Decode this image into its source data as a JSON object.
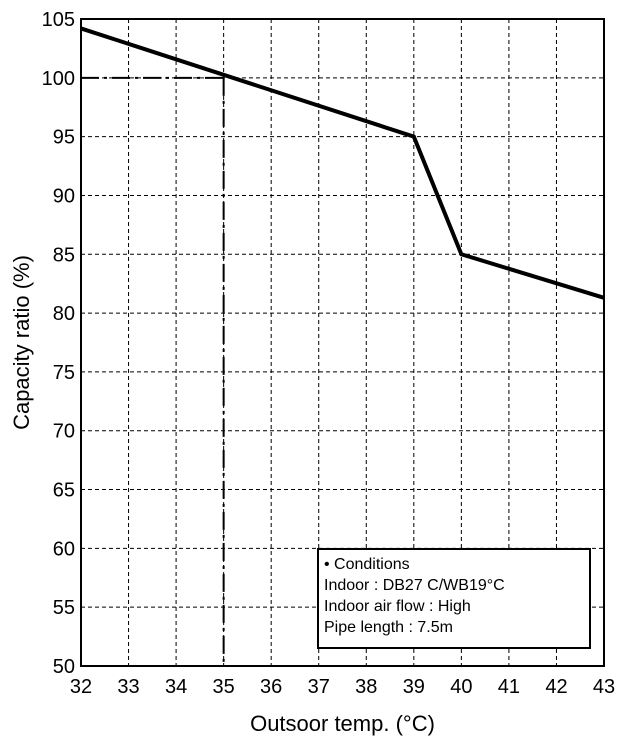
{
  "chart_data": {
    "type": "line",
    "xlabel": "Outsoor temp. (°C)",
    "ylabel": "Capacity ratio (%)",
    "xlim": [
      32,
      43
    ],
    "ylim": [
      50,
      105
    ],
    "x_ticks": [
      32,
      33,
      34,
      35,
      36,
      37,
      38,
      39,
      40,
      41,
      42,
      43
    ],
    "y_ticks": [
      50,
      55,
      60,
      65,
      70,
      75,
      80,
      85,
      90,
      95,
      100,
      105
    ],
    "grid": true,
    "series": [
      {
        "x": [
          32,
          39,
          40,
          43
        ],
        "y": [
          104.2,
          95,
          85,
          81.3
        ],
        "color": "#000000"
      }
    ],
    "reference": {
      "x": 35,
      "y": 100
    },
    "conditions": {
      "lines": [
        "• Conditions",
        "Indoor : DB27 C/WB19°C",
        "Indoor air flow : High",
        "Pipe length : 7.5m"
      ]
    }
  }
}
